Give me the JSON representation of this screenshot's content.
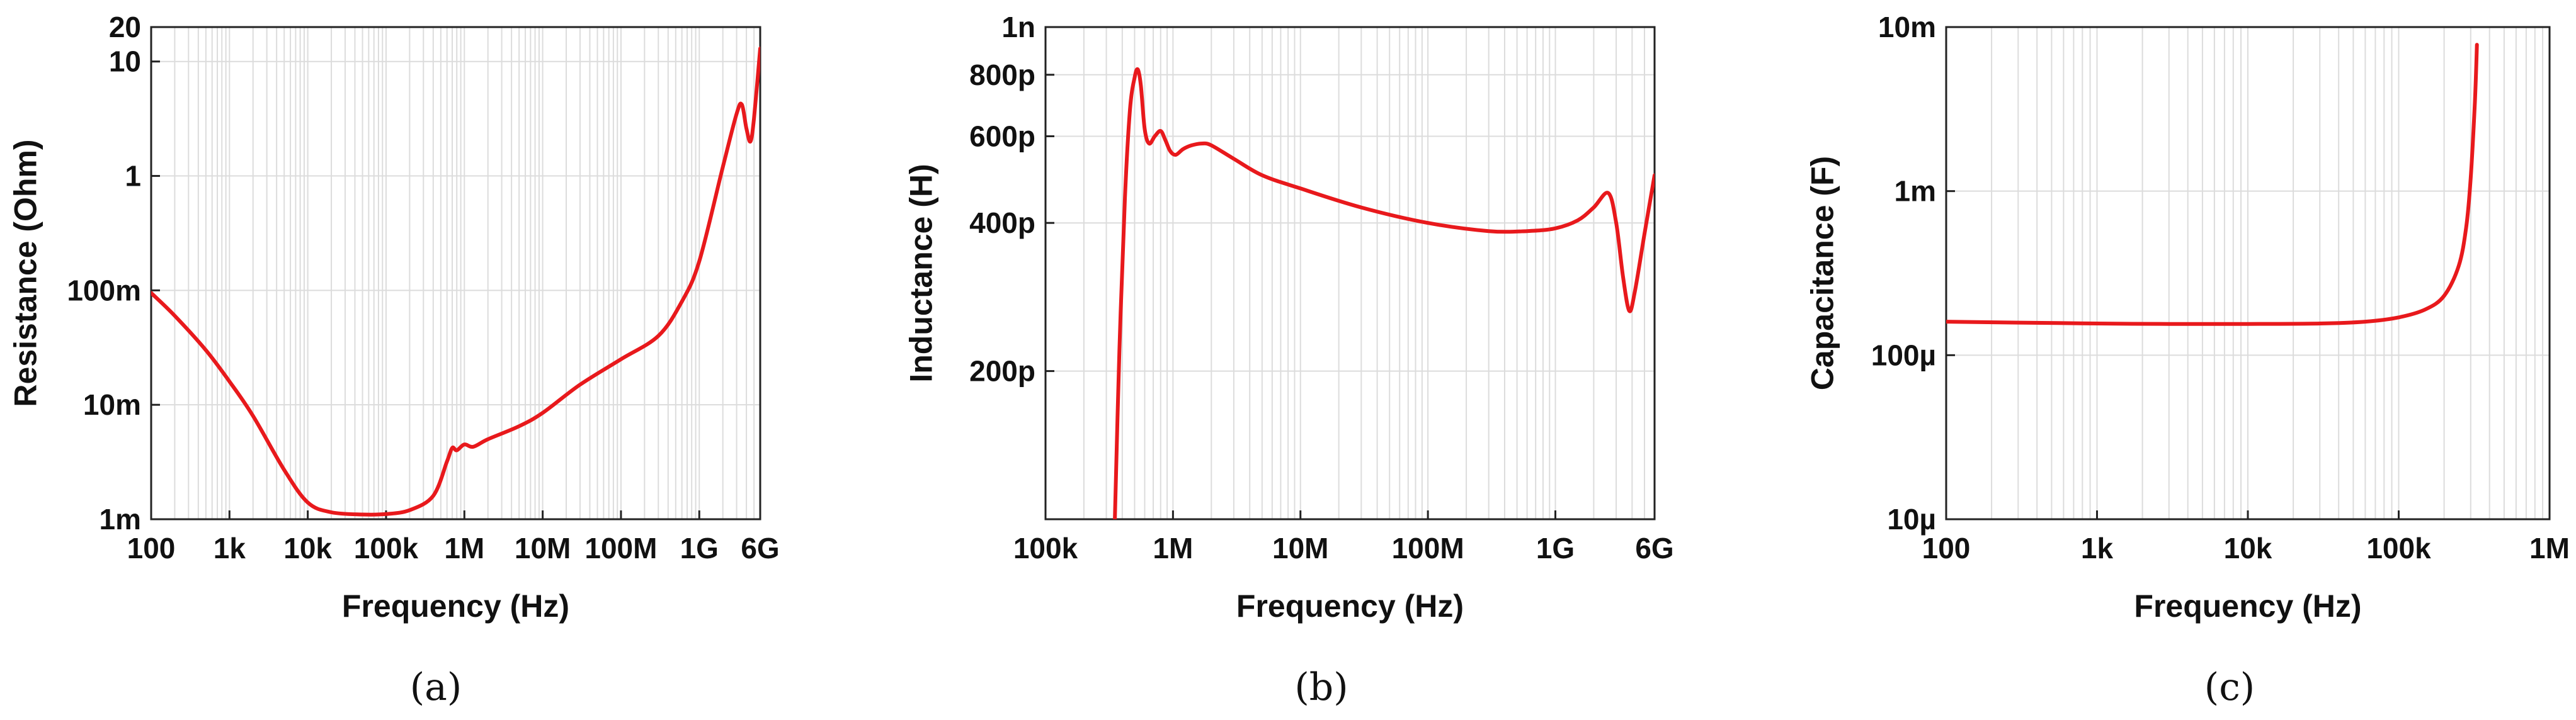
{
  "colors": {
    "curve": "#e8191c",
    "grid": "#dcdcdc",
    "axis": "#222222"
  },
  "chart_data": [
    {
      "id": "a",
      "type": "line",
      "caption": "(a)",
      "xlabel": "Frequency (Hz)",
      "ylabel": "Resistance (Ohm)",
      "xscale": "log",
      "yscale": "log",
      "xlim": [
        100,
        6000000000
      ],
      "ylim": [
        0.001,
        20
      ],
      "xticks": [
        {
          "v": 100,
          "label": "100"
        },
        {
          "v": 1000,
          "label": "1k"
        },
        {
          "v": 10000,
          "label": "10k"
        },
        {
          "v": 100000,
          "label": "100k"
        },
        {
          "v": 1000000,
          "label": "1M"
        },
        {
          "v": 10000000,
          "label": "10M"
        },
        {
          "v": 100000000,
          "label": "100M"
        },
        {
          "v": 1000000000,
          "label": "1G"
        },
        {
          "v": 6000000000,
          "label": "6G"
        }
      ],
      "yticks": [
        {
          "v": 0.001,
          "label": "1m"
        },
        {
          "v": 0.01,
          "label": "10m"
        },
        {
          "v": 0.1,
          "label": "100m"
        },
        {
          "v": 1,
          "label": "1"
        },
        {
          "v": 10,
          "label": "10"
        },
        {
          "v": 20,
          "label": "20"
        }
      ],
      "grid": true,
      "series": [
        {
          "x": [
            100,
            200,
            500,
            1000,
            2000,
            5000,
            10000,
            20000,
            50000,
            100000,
            200000,
            400000,
            600000,
            700000,
            800000,
            1000000,
            1300000,
            2000000,
            5000000,
            10000000,
            30000000,
            100000000,
            300000000,
            600000000,
            1000000000,
            2000000000,
            3000000000,
            3500000000,
            4000000000,
            4500000000,
            5000000000,
            6000000000
          ],
          "y": [
            0.095,
            0.06,
            0.03,
            0.016,
            0.008,
            0.0027,
            0.0014,
            0.00115,
            0.0011,
            0.00111,
            0.0012,
            0.0016,
            0.0032,
            0.0042,
            0.004,
            0.0045,
            0.0043,
            0.005,
            0.0065,
            0.0085,
            0.015,
            0.025,
            0.04,
            0.08,
            0.18,
            1.2,
            3.5,
            4.2,
            2.6,
            2.0,
            3.2,
            13
          ]
        }
      ]
    },
    {
      "id": "b",
      "type": "line",
      "caption": "(b)",
      "xlabel": "Frequency (Hz)",
      "ylabel": "Inductance (H)",
      "xscale": "log",
      "yscale": "log",
      "xlim": [
        100000,
        6000000000
      ],
      "ylim": [
        1e-10,
        1e-09
      ],
      "xticks": [
        {
          "v": 100000,
          "label": "100k"
        },
        {
          "v": 1000000,
          "label": "1M"
        },
        {
          "v": 10000000,
          "label": "10M"
        },
        {
          "v": 100000000,
          "label": "100M"
        },
        {
          "v": 1000000000,
          "label": "1G"
        },
        {
          "v": 6000000000,
          "label": "6G"
        }
      ],
      "yticks": [
        {
          "v": 2e-10,
          "label": "200p"
        },
        {
          "v": 4e-10,
          "label": "400p"
        },
        {
          "v": 6e-10,
          "label": "600p"
        },
        {
          "v": 8e-10,
          "label": "800p"
        },
        {
          "v": 1e-09,
          "label": "1n"
        }
      ],
      "grid": true,
      "series": [
        {
          "x": [
            350000,
            380000,
            420000,
            460000,
            500000,
            530000,
            560000,
            600000,
            650000,
            720000,
            800000,
            870000,
            950000,
            1050000,
            1200000,
            1400000,
            1700000,
            2000000,
            3000000,
            5000000,
            10000000,
            30000000,
            100000000,
            300000000,
            600000000,
            1000000000,
            1500000000,
            2000000000,
            2600000000,
            3000000000,
            3400000000,
            3800000000,
            4200000000,
            5000000000,
            6000000000
          ],
          "y": [
            1e-10,
            2.2e-10,
            4.5e-10,
            6.8e-10,
            7.9e-10,
            8.2e-10,
            7.6e-10,
            6.2e-10,
            5.8e-10,
            6e-10,
            6.15e-10,
            5.9e-10,
            5.6e-10,
            5.5e-10,
            5.65e-10,
            5.75e-10,
            5.8e-10,
            5.75e-10,
            5.4e-10,
            5e-10,
            4.7e-10,
            4.3e-10,
            4e-10,
            3.85e-10,
            3.85e-10,
            3.9e-10,
            4.05e-10,
            4.3e-10,
            4.6e-10,
            4e-10,
            3.1e-10,
            2.65e-10,
            2.9e-10,
            3.8e-10,
            5e-10
          ]
        }
      ]
    },
    {
      "id": "c",
      "type": "line",
      "caption": "(c)",
      "xlabel": "Frequency (Hz)",
      "ylabel": "Capacitance (F)",
      "xscale": "log",
      "yscale": "log",
      "xlim": [
        100,
        1000000
      ],
      "ylim": [
        1e-05,
        0.01
      ],
      "xticks": [
        {
          "v": 100,
          "label": "100"
        },
        {
          "v": 1000,
          "label": "1k"
        },
        {
          "v": 10000,
          "label": "10k"
        },
        {
          "v": 100000,
          "label": "100k"
        },
        {
          "v": 1000000,
          "label": "1M"
        }
      ],
      "yticks": [
        {
          "v": 1e-05,
          "label": "10µ"
        },
        {
          "v": 0.0001,
          "label": "100µ"
        },
        {
          "v": 0.001,
          "label": "1m"
        },
        {
          "v": 0.01,
          "label": "10m"
        }
      ],
      "grid": true,
      "series": [
        {
          "x": [
            100,
            300,
            1000,
            3000,
            10000,
            30000,
            60000,
            100000,
            150000,
            200000,
            250000,
            280000,
            300000,
            320000,
            330000
          ],
          "y": [
            0.00016,
            0.000158,
            0.000156,
            0.000155,
            0.000155,
            0.000156,
            0.00016,
            0.00017,
            0.00019,
            0.00023,
            0.00035,
            0.0006,
            0.0012,
            0.0035,
            0.0078
          ]
        }
      ]
    }
  ]
}
